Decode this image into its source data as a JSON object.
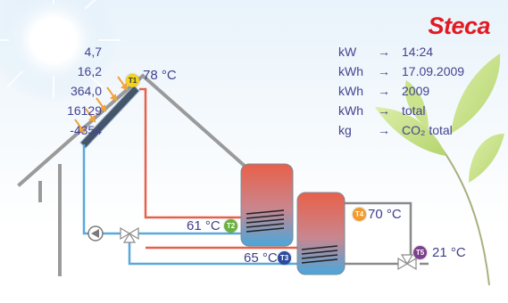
{
  "brand": {
    "logo_text": "Steca",
    "color": "#e21a22"
  },
  "sensors": {
    "t1": {
      "badge": "T1",
      "temperature": "78 °C",
      "color": "#f2d21b"
    },
    "t2": {
      "badge": "T2",
      "temperature": "61 °C",
      "color": "#6ab23e"
    },
    "t3": {
      "badge": "T3",
      "temperature": "65 °C",
      "color": "#2b4aa0"
    },
    "t4": {
      "badge": "T4",
      "temperature": "70 °C",
      "color": "#f39a2b"
    },
    "t5": {
      "badge": "T5",
      "temperature": "21 °C",
      "color": "#7d3f8f"
    }
  },
  "stats": [
    {
      "value": "4,7",
      "unit": "kW",
      "arrow": "→",
      "ref": "14:24"
    },
    {
      "value": "16,2",
      "unit": "kWh",
      "arrow": "→",
      "ref": "17.09.2009"
    },
    {
      "value": "364,0",
      "unit": "kWh",
      "arrow": "→",
      "ref": "2009"
    },
    {
      "value": "16129",
      "unit": "kWh",
      "arrow": "→",
      "ref": "total"
    },
    {
      "value": "-4354",
      "unit": "kg",
      "arrow": "→",
      "ref": "CO₂ total"
    }
  ],
  "icons": {
    "sun": "sun-icon",
    "collector": "solar-collector-icon",
    "tank1": "storage-tank-icon",
    "tank2": "storage-tank-icon",
    "pump": "pump-icon",
    "valve": "valve-icon",
    "leaf": "leaf-icon"
  },
  "colors": {
    "hot_pipe": "#e8604a",
    "cold_pipe": "#5aa8dd",
    "house_outline": "#9a9a9a",
    "text": "#3f3f8a"
  }
}
